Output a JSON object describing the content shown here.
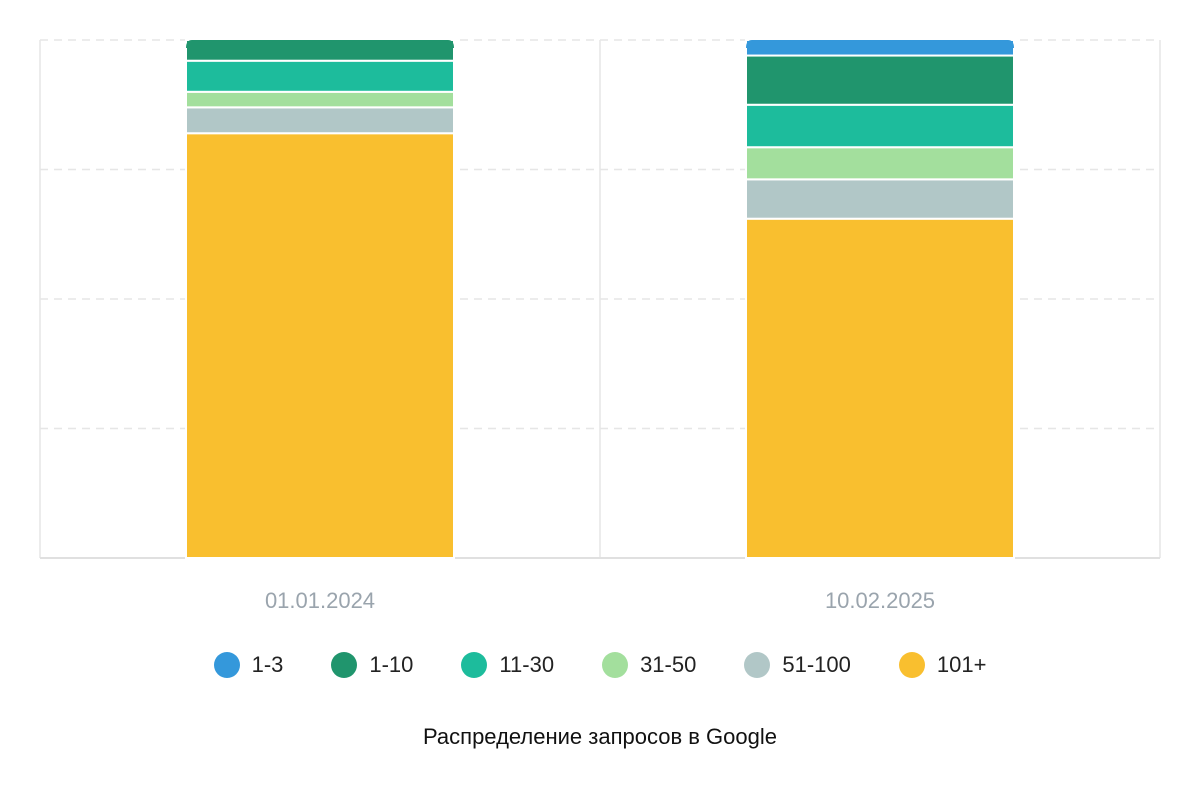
{
  "chart_data": {
    "type": "bar",
    "stacked": true,
    "normalized": true,
    "title": "Распределение запросов в Google",
    "categories": [
      "01.01.2024",
      "10.02.2025"
    ],
    "series": [
      {
        "name": "1-3",
        "color": "#3498db",
        "values": [
          0.0,
          3.0
        ]
      },
      {
        "name": "1-10",
        "color": "#20956d",
        "values": [
          4.0,
          9.5
        ]
      },
      {
        "name": "11-30",
        "color": "#1dbc9c",
        "values": [
          6.0,
          8.2
        ]
      },
      {
        "name": "31-50",
        "color": "#a3df9d",
        "values": [
          3.0,
          6.2
        ]
      },
      {
        "name": "51-100",
        "color": "#b1c7c7",
        "values": [
          5.0,
          7.6
        ]
      },
      {
        "name": "101+",
        "color": "#f9bf2f",
        "values": [
          82.0,
          65.5
        ]
      }
    ],
    "ylim": [
      0,
      100
    ],
    "grid": true,
    "legend": "bottom"
  }
}
